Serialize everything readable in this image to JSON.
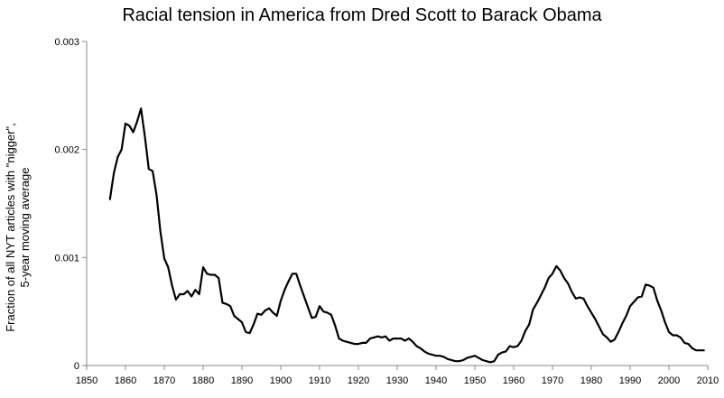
{
  "chart_data": {
    "type": "line",
    "title": "Racial tension in America from Dred Scott to Barack Obama",
    "ylabel_lines": [
      "Fraction of all NYT articles with \"nigger\",",
      "5-year moving average"
    ],
    "xlabel": "",
    "xlim": [
      1850,
      2010
    ],
    "ylim": [
      0,
      0.003
    ],
    "x_ticks": [
      "1850",
      "1860",
      "1870",
      "1880",
      "1890",
      "1900",
      "1910",
      "1920",
      "1930",
      "1940",
      "1950",
      "1960",
      "1970",
      "1980",
      "1990",
      "2000",
      "2010"
    ],
    "y_ticks": [
      "0",
      "0.001",
      "0.002",
      "0.003"
    ],
    "grid": false,
    "legend": "none",
    "line_color": "#000000",
    "series": [
      {
        "x": [
          1856,
          1857,
          1858,
          1859,
          1860,
          1861,
          1862,
          1863,
          1864,
          1865,
          1866,
          1867,
          1868,
          1869,
          1870,
          1871,
          1872,
          1873,
          1874,
          1875,
          1876,
          1877,
          1878,
          1879,
          1880,
          1881,
          1882,
          1883,
          1884,
          1885,
          1886,
          1887,
          1888,
          1889,
          1890,
          1891,
          1892,
          1893,
          1894,
          1895,
          1896,
          1897,
          1898,
          1899,
          1900,
          1901,
          1902,
          1903,
          1904,
          1905,
          1906,
          1907,
          1908,
          1909,
          1910,
          1911,
          1912,
          1913,
          1914,
          1915,
          1916,
          1917,
          1918,
          1919,
          1920,
          1921,
          1922,
          1923,
          1924,
          1925,
          1926,
          1927,
          1928,
          1929,
          1930,
          1931,
          1932,
          1933,
          1934,
          1935,
          1936,
          1937,
          1938,
          1939,
          1940,
          1941,
          1942,
          1943,
          1944,
          1945,
          1946,
          1947,
          1948,
          1949,
          1950,
          1951,
          1952,
          1953,
          1954,
          1955,
          1956,
          1957,
          1958,
          1959,
          1960,
          1961,
          1962,
          1963,
          1964,
          1965,
          1966,
          1967,
          1968,
          1969,
          1970,
          1971,
          1972,
          1973,
          1974,
          1975,
          1976,
          1977,
          1978,
          1979,
          1980,
          1981,
          1982,
          1983,
          1984,
          1985,
          1986,
          1987,
          1988,
          1989,
          1990,
          1991,
          1992,
          1993,
          1994,
          1995,
          1996,
          1997,
          1998,
          1999,
          2000,
          2001,
          2002,
          2003,
          2004,
          2005,
          2006,
          2007,
          2008,
          2009
        ],
        "values": [
          0.00154,
          0.00178,
          0.00193,
          0.002,
          0.00224,
          0.00222,
          0.00216,
          0.00226,
          0.00238,
          0.00212,
          0.00182,
          0.0018,
          0.00158,
          0.00124,
          0.00099,
          0.00091,
          0.00074,
          0.00061,
          0.00066,
          0.00066,
          0.00069,
          0.00064,
          0.0007,
          0.00066,
          0.00091,
          0.00085,
          0.00084,
          0.00084,
          0.00081,
          0.00058,
          0.00057,
          0.00055,
          0.00046,
          0.00043,
          0.0004,
          0.00031,
          0.0003,
          0.00038,
          0.00048,
          0.00047,
          0.00051,
          0.00053,
          0.00049,
          0.00046,
          0.0006,
          0.0007,
          0.00078,
          0.00085,
          0.00085,
          0.00074,
          0.00064,
          0.00054,
          0.00044,
          0.00045,
          0.00055,
          0.0005,
          0.00049,
          0.00047,
          0.00037,
          0.00025,
          0.00023,
          0.00022,
          0.00021,
          0.0002,
          0.0002,
          0.00021,
          0.00021,
          0.00025,
          0.00026,
          0.00027,
          0.00026,
          0.00027,
          0.00023,
          0.00025,
          0.00025,
          0.00025,
          0.00023,
          0.00025,
          0.00022,
          0.00018,
          0.00016,
          0.00013,
          0.00011,
          0.0001,
          9e-05,
          9e-05,
          8e-05,
          6e-05,
          5e-05,
          4e-05,
          4e-05,
          5e-05,
          7e-05,
          8e-05,
          9e-05,
          7e-05,
          5e-05,
          4e-05,
          3e-05,
          4e-05,
          0.0001,
          0.00012,
          0.00013,
          0.00018,
          0.00017,
          0.00018,
          0.00023,
          0.00032,
          0.00038,
          0.00052,
          0.00058,
          0.00065,
          0.00072,
          0.00081,
          0.00085,
          0.00092,
          0.00088,
          0.00081,
          0.00076,
          0.00068,
          0.00062,
          0.00063,
          0.00062,
          0.00055,
          0.00049,
          0.00043,
          0.00036,
          0.00029,
          0.00026,
          0.00022,
          0.00024,
          0.00031,
          0.00039,
          0.00046,
          0.00055,
          0.00059,
          0.00063,
          0.00064,
          0.00075,
          0.00074,
          0.00072,
          0.0006,
          0.00051,
          0.0004,
          0.00031,
          0.00028,
          0.00028,
          0.00026,
          0.00021,
          0.0002,
          0.00016,
          0.00014,
          0.00014,
          0.00014
        ]
      }
    ]
  }
}
